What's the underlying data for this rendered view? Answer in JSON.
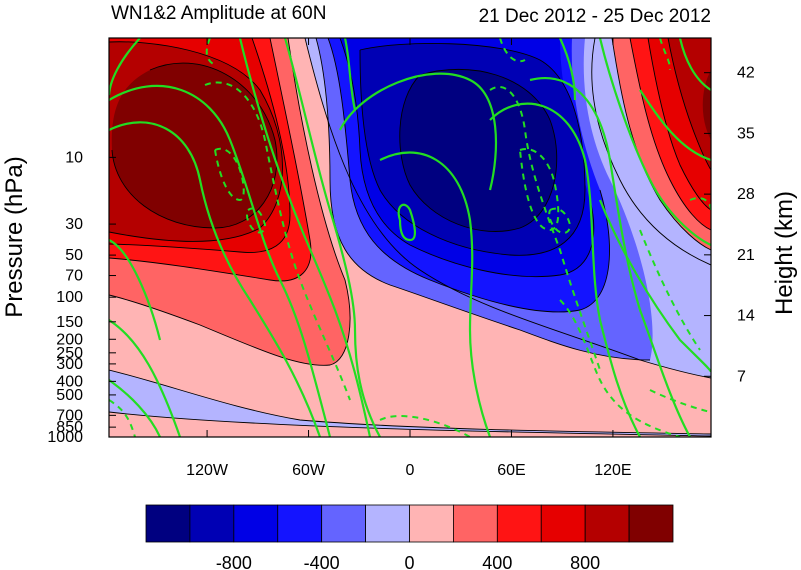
{
  "chart_data": {
    "type": "heatmap",
    "title_left": "WN1&2 Amplitude at 60N",
    "title_right": "21 Dec 2012 - 25 Dec 2012",
    "ylabel": "Pressure (hPa)",
    "ylabel_right": "Height (km)",
    "xlabel": "",
    "x_ticks": [
      {
        "value": -120,
        "label": "120W"
      },
      {
        "value": -60,
        "label": "60W"
      },
      {
        "value": 0,
        "label": "0"
      },
      {
        "value": 60,
        "label": "60E"
      },
      {
        "value": 120,
        "label": "120E"
      }
    ],
    "xlim": [
      -178,
      178
    ],
    "y_ticks": [
      {
        "value": 10,
        "label": "10"
      },
      {
        "value": 30,
        "label": "30"
      },
      {
        "value": 50,
        "label": "50"
      },
      {
        "value": 70,
        "label": "70"
      },
      {
        "value": 100,
        "label": "100"
      },
      {
        "value": 150,
        "label": "150"
      },
      {
        "value": 200,
        "label": "200"
      },
      {
        "value": 250,
        "label": "250"
      },
      {
        "value": 300,
        "label": "300"
      },
      {
        "value": 400,
        "label": "400"
      },
      {
        "value": 500,
        "label": "500"
      },
      {
        "value": 700,
        "label": "700"
      },
      {
        "value": 850,
        "label": "850"
      },
      {
        "value": 1000,
        "label": "1000"
      }
    ],
    "ylim": [
      1000,
      1.4
    ],
    "y_scale": "log",
    "y_ticks_right": [
      {
        "value": 42,
        "label": "42"
      },
      {
        "value": 35,
        "label": "35"
      },
      {
        "value": 28,
        "label": "28"
      },
      {
        "value": 21,
        "label": "21"
      },
      {
        "value": 14,
        "label": "14"
      },
      {
        "value": 7,
        "label": "7"
      }
    ],
    "colorbar": {
      "boundaries": [
        -1000,
        -800,
        -600,
        -400,
        -200,
        0,
        200,
        400,
        600,
        800,
        1000
      ],
      "labels": [
        "-800",
        "-400",
        "0",
        "400",
        "800"
      ],
      "label_values": [
        -800,
        -400,
        0,
        400,
        800
      ],
      "colors": [
        "#000080",
        "#0000b4",
        "#0000e6",
        "#1414ff",
        "#6464ff",
        "#b4b4ff",
        "#ffb4b4",
        "#ff6464",
        "#ff1414",
        "#e60000",
        "#b40000",
        "#800000"
      ]
    },
    "contour_color": "#22dd22"
  }
}
